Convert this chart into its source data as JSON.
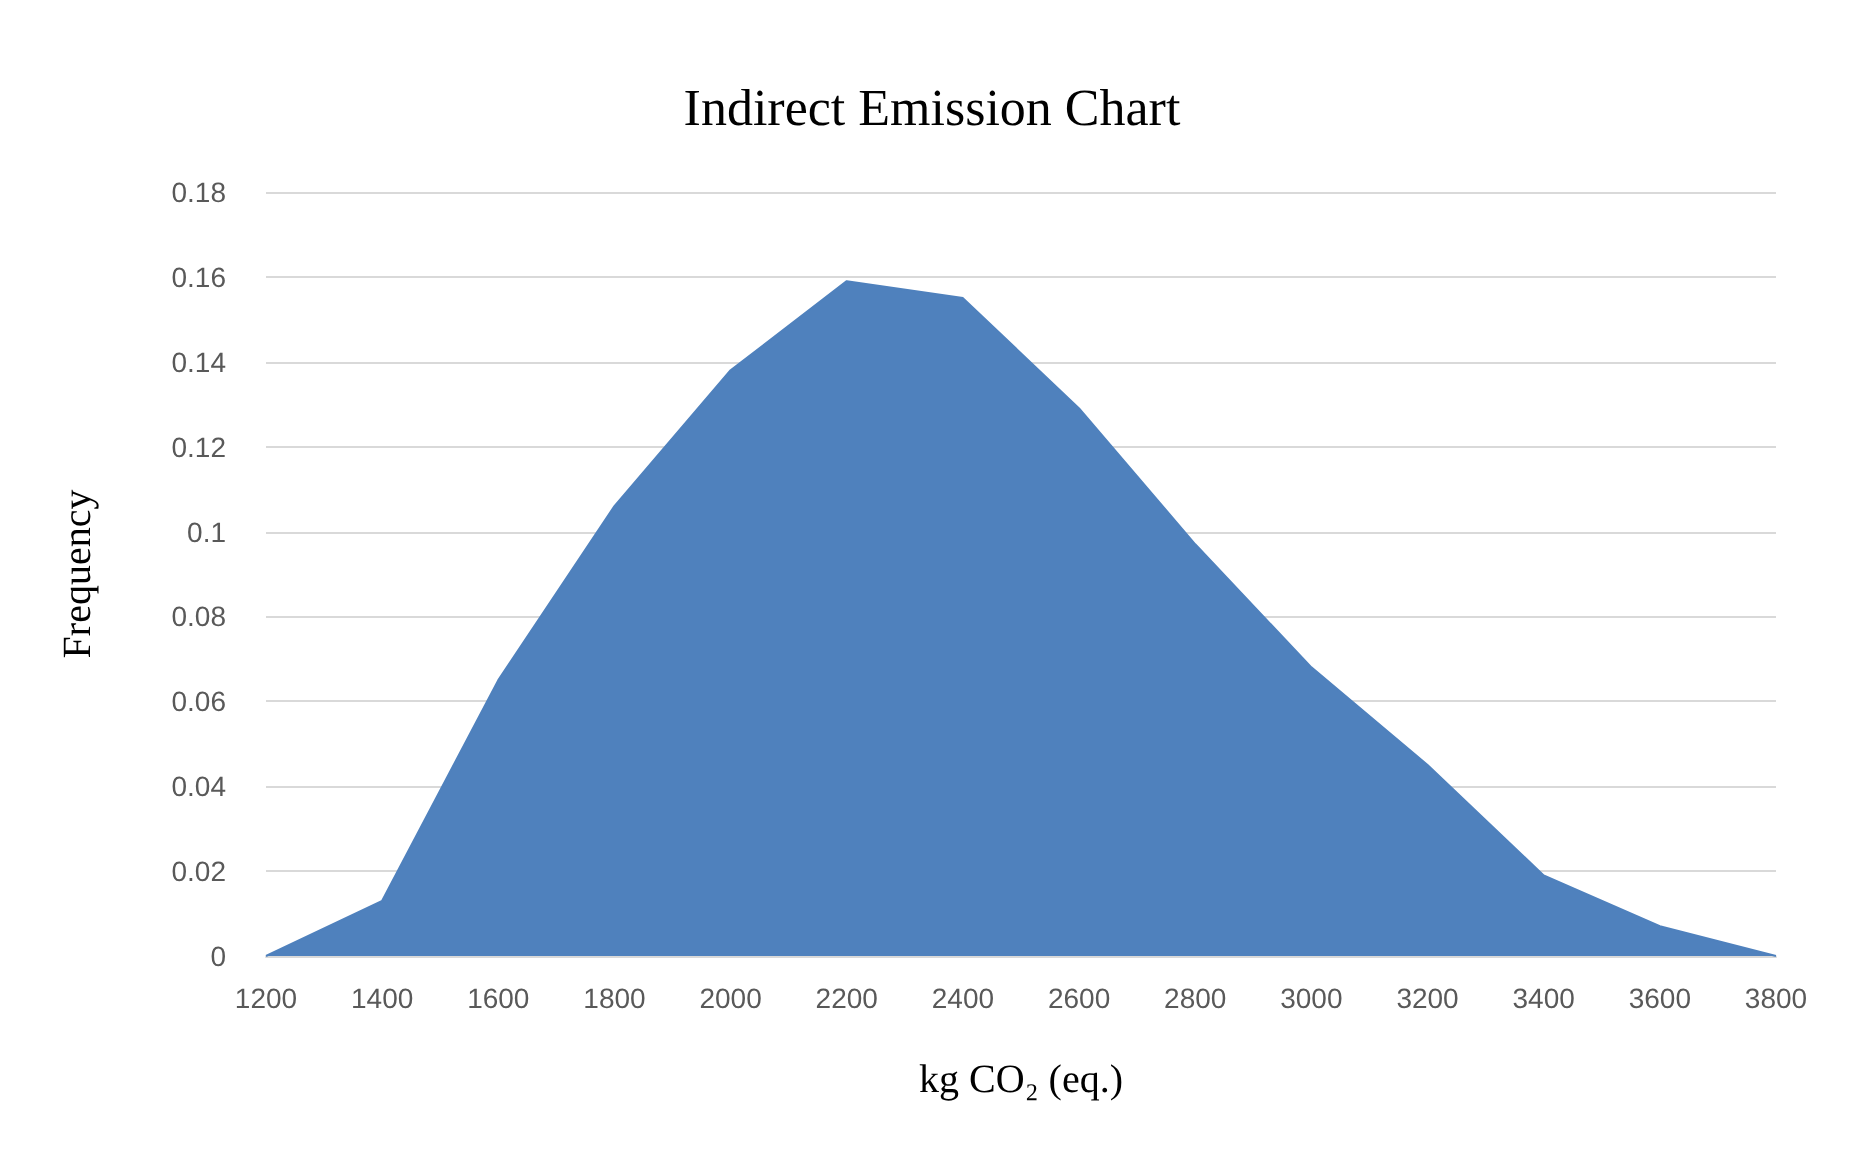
{
  "chart_data": {
    "type": "area",
    "title": "Indirect Emission Chart",
    "xlabel": "kg CO₂ (eq.)",
    "ylabel": "Frequency",
    "x": [
      1200,
      1400,
      1600,
      1800,
      2000,
      2200,
      2400,
      2600,
      2800,
      3000,
      3200,
      3400,
      3600,
      3800
    ],
    "series": [
      {
        "color": "#4f81bd",
        "values": [
          0,
          0.013,
          0.065,
          0.106,
          0.138,
          0.159,
          0.155,
          0.129,
          0.097,
          0.068,
          0.045,
          0.019,
          0.007,
          0
        ]
      }
    ],
    "xlim": [
      1200,
      3800
    ],
    "xticks": [
      1200,
      1400,
      1600,
      1800,
      2000,
      2200,
      2400,
      2600,
      2800,
      3000,
      3200,
      3400,
      3600,
      3800
    ],
    "ylim": [
      0,
      0.18
    ],
    "yticks": [
      0,
      0.02,
      0.04,
      0.06,
      0.08,
      0.1,
      0.12,
      0.14,
      0.16,
      0.18
    ],
    "grid": "y",
    "marker": "none"
  }
}
